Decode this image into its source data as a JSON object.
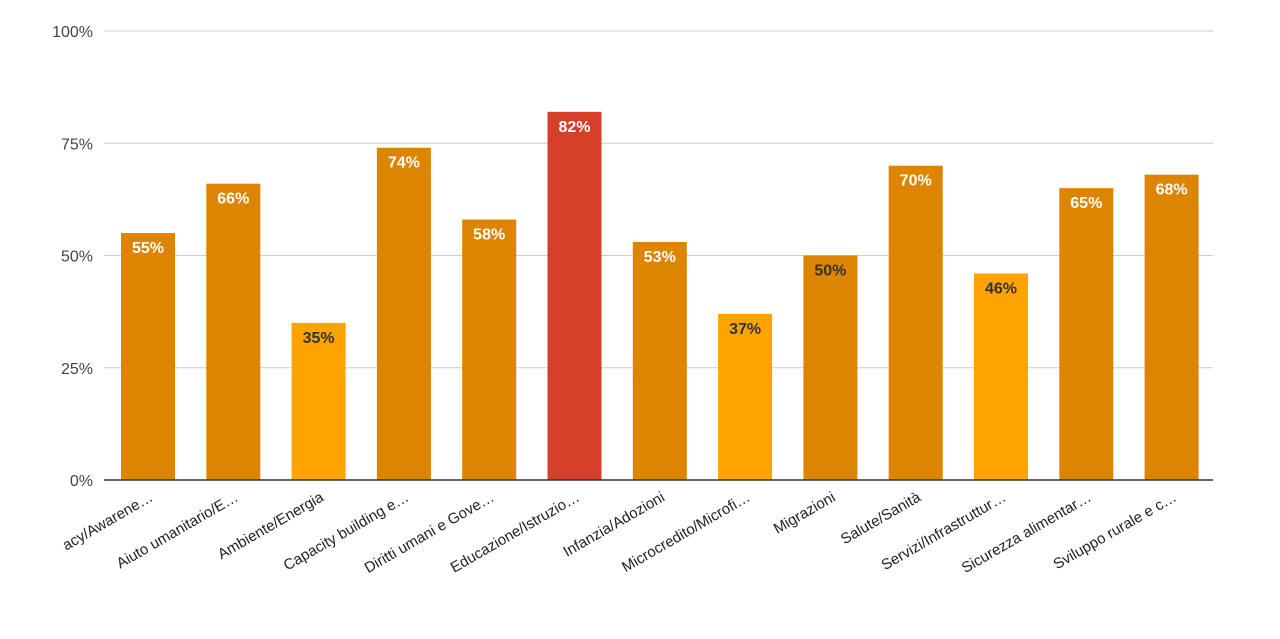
{
  "chart_data": {
    "type": "bar",
    "title": "",
    "xlabel": "",
    "ylabel": "",
    "ylim": [
      0,
      100
    ],
    "y_ticks": [
      "0%",
      "25%",
      "50%",
      "75%",
      "100%"
    ],
    "y_tick_values": [
      0,
      25,
      50,
      75,
      100
    ],
    "grid": true,
    "legend": "none",
    "categories": [
      "acy/Awarene…",
      "Aiuto umanitario/E…",
      "Ambiente/Energia",
      "Capacity building e…",
      "Diritti umani e Gove…",
      "Educazione/Istruzio…",
      "Infanzia/Adozioni",
      "Microcredito/Microfi…",
      "Migrazioni",
      "Salute/Sanità",
      "Servizi/Infrastruttur…",
      "Sicurezza alimentar…",
      "Sviluppo rurale e c…"
    ],
    "values": [
      55,
      66,
      35,
      74,
      58,
      82,
      53,
      37,
      50,
      70,
      46,
      65,
      68
    ],
    "data_labels": [
      "55%",
      "66%",
      "35%",
      "74%",
      "58%",
      "82%",
      "53%",
      "37%",
      "50%",
      "70%",
      "46%",
      "65%",
      "68%"
    ],
    "bar_colors": [
      "#dd8400",
      "#dd8400",
      "#ffa300",
      "#dd8400",
      "#dd8400",
      "#d33f27",
      "#dd8400",
      "#ffa300",
      "#dd8400",
      "#dd8400",
      "#ffa300",
      "#dd8400",
      "#dd8400"
    ],
    "label_colors": [
      "#ffffff",
      "#ffffff",
      "#333333",
      "#ffffff",
      "#ffffff",
      "#ffffff",
      "#ffffff",
      "#333333",
      "#333333",
      "#ffffff",
      "#333333",
      "#ffffff",
      "#ffffff"
    ]
  }
}
